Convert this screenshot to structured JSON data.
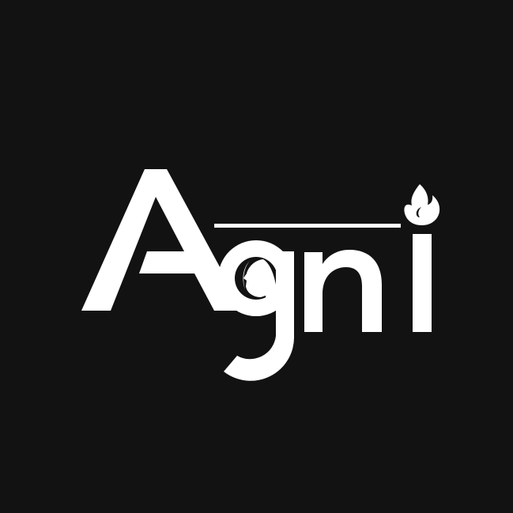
{
  "logo": {
    "wordmark": "Agni",
    "background_color": "#121212",
    "foreground_color": "#ffffff",
    "icons": [
      "woman-profile-icon",
      "flame-icon"
    ]
  }
}
